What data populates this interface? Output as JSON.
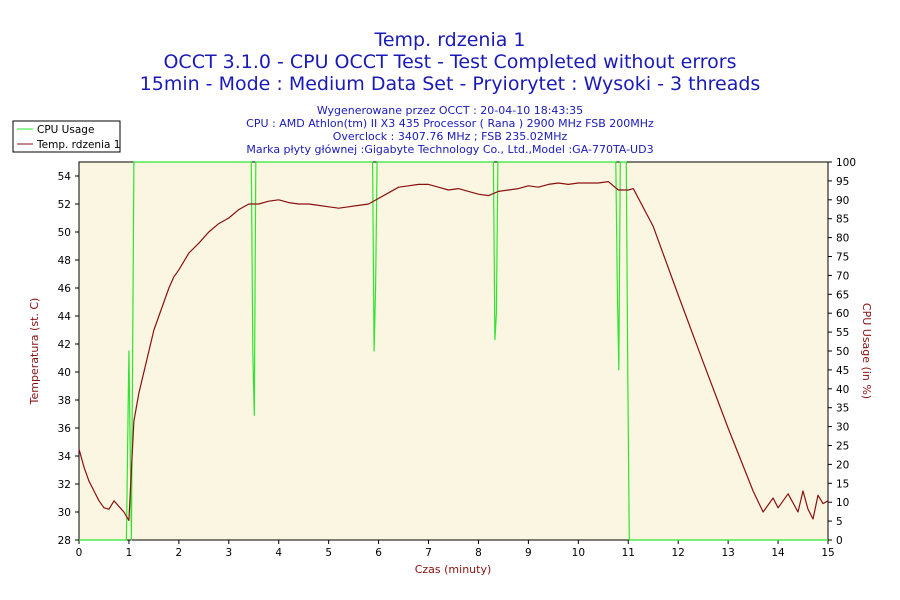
{
  "chart_data": {
    "type": "line",
    "title_lines": [
      "Temp. rdzenia 1",
      "OCCT 3.1.0 - CPU OCCT Test - Test Completed without errors",
      "15min - Mode : Medium Data Set - Pryiorytet : Wysoki - 3 threads"
    ],
    "info_lines": [
      "Wygenerowane przez OCCT : 20-04-10 18:43:35",
      "CPU : AMD Athlon(tm) II X3 435 Processor ( Rana ) 2900 MHz FSB 200MHz",
      "Overclock : 3407.76 MHz ; FSB 235.02MHz",
      "Marka płyty głównej :Gigabyte Technology Co., Ltd.,Model :GA-770TA-UD3"
    ],
    "xlabel": "Czas (minuty)",
    "ylabel_left": "Temperatura (st. C)",
    "ylabel_right": "CPU Usage (in %)",
    "xlim": [
      0,
      15
    ],
    "ylim_left": [
      28,
      55
    ],
    "ylim_right": [
      0,
      100
    ],
    "x_ticks": [
      "0",
      "1",
      "2",
      "3",
      "4",
      "5",
      "6",
      "7",
      "8",
      "9",
      "10",
      "11",
      "12",
      "13",
      "14",
      "15"
    ],
    "y_left_ticks": [
      "28",
      "30",
      "32",
      "34",
      "36",
      "38",
      "40",
      "42",
      "44",
      "46",
      "48",
      "50",
      "52",
      "54"
    ],
    "y_right_ticks": [
      "0",
      "5",
      "10",
      "15",
      "20",
      "25",
      "30",
      "35",
      "40",
      "45",
      "50",
      "55",
      "60",
      "65",
      "70",
      "75",
      "80",
      "85",
      "90",
      "95",
      "100"
    ],
    "legend": {
      "placement": "top-left",
      "entries": [
        "CPU Usage",
        "Temp. rdzenia 1"
      ]
    },
    "grid": false,
    "colors": {
      "cpu": "#2ee62e",
      "temp": "#8b1010",
      "plot_bg": "#fbf6e2",
      "title": "#1a1ab8"
    },
    "series": [
      {
        "name": "CPU Usage",
        "axis": "right",
        "x": [
          0,
          0.95,
          1.0,
          1.05,
          1.1,
          1.15,
          3.45,
          3.48,
          3.51,
          3.54,
          5.88,
          5.91,
          5.94,
          5.97,
          8.3,
          8.33,
          8.36,
          8.39,
          10.75,
          10.78,
          10.81,
          10.84,
          10.96,
          10.99,
          11.02,
          11.05,
          11.08,
          15
        ],
        "y": [
          0,
          0,
          50,
          0,
          100,
          100,
          100,
          50,
          33,
          100,
          100,
          50,
          67,
          100,
          100,
          53,
          60,
          100,
          100,
          67,
          45,
          100,
          100,
          43,
          0,
          0,
          0,
          0
        ]
      },
      {
        "name": "Temp. rdzenia 1",
        "axis": "left",
        "x": [
          0,
          0.1,
          0.2,
          0.3,
          0.4,
          0.5,
          0.6,
          0.7,
          0.8,
          0.9,
          1.0,
          1.05,
          1.1,
          1.2,
          1.3,
          1.4,
          1.5,
          1.6,
          1.7,
          1.8,
          1.9,
          2.0,
          2.2,
          2.4,
          2.6,
          2.8,
          3.0,
          3.2,
          3.4,
          3.6,
          3.8,
          4.0,
          4.2,
          4.4,
          4.6,
          4.8,
          5.0,
          5.2,
          5.4,
          5.6,
          5.8,
          6.0,
          6.2,
          6.4,
          6.6,
          6.8,
          7.0,
          7.2,
          7.4,
          7.6,
          7.8,
          8.0,
          8.2,
          8.4,
          8.6,
          8.8,
          9.0,
          9.2,
          9.4,
          9.6,
          9.8,
          10.0,
          10.2,
          10.4,
          10.6,
          10.8,
          11.0,
          11.1,
          11.5,
          12.0,
          12.5,
          13.0,
          13.5,
          13.7,
          13.9,
          14.0,
          14.2,
          14.4,
          14.5,
          14.6,
          14.7,
          14.8,
          14.9,
          15.0
        ],
        "y": [
          34.5,
          33.2,
          32.2,
          31.5,
          30.8,
          30.3,
          30.2,
          30.8,
          30.4,
          30.0,
          29.4,
          33.0,
          36.5,
          38.5,
          40.0,
          41.5,
          43.0,
          44.0,
          45.0,
          46.0,
          46.8,
          47.3,
          48.5,
          49.2,
          50.0,
          50.6,
          51.0,
          51.6,
          52.0,
          52.0,
          52.2,
          52.3,
          52.1,
          52.0,
          52.0,
          51.9,
          51.8,
          51.7,
          51.8,
          51.9,
          52.0,
          52.4,
          52.8,
          53.2,
          53.3,
          53.4,
          53.4,
          53.2,
          53.0,
          53.1,
          52.9,
          52.7,
          52.6,
          52.9,
          53.0,
          53.1,
          53.3,
          53.2,
          53.4,
          53.5,
          53.4,
          53.5,
          53.5,
          53.5,
          53.6,
          53.0,
          53.0,
          53.1,
          50.4,
          45.5,
          40.7,
          36.0,
          31.5,
          30.0,
          31.0,
          30.3,
          31.3,
          30.0,
          31.5,
          30.2,
          29.5,
          31.2,
          30.6,
          30.8
        ]
      }
    ]
  }
}
